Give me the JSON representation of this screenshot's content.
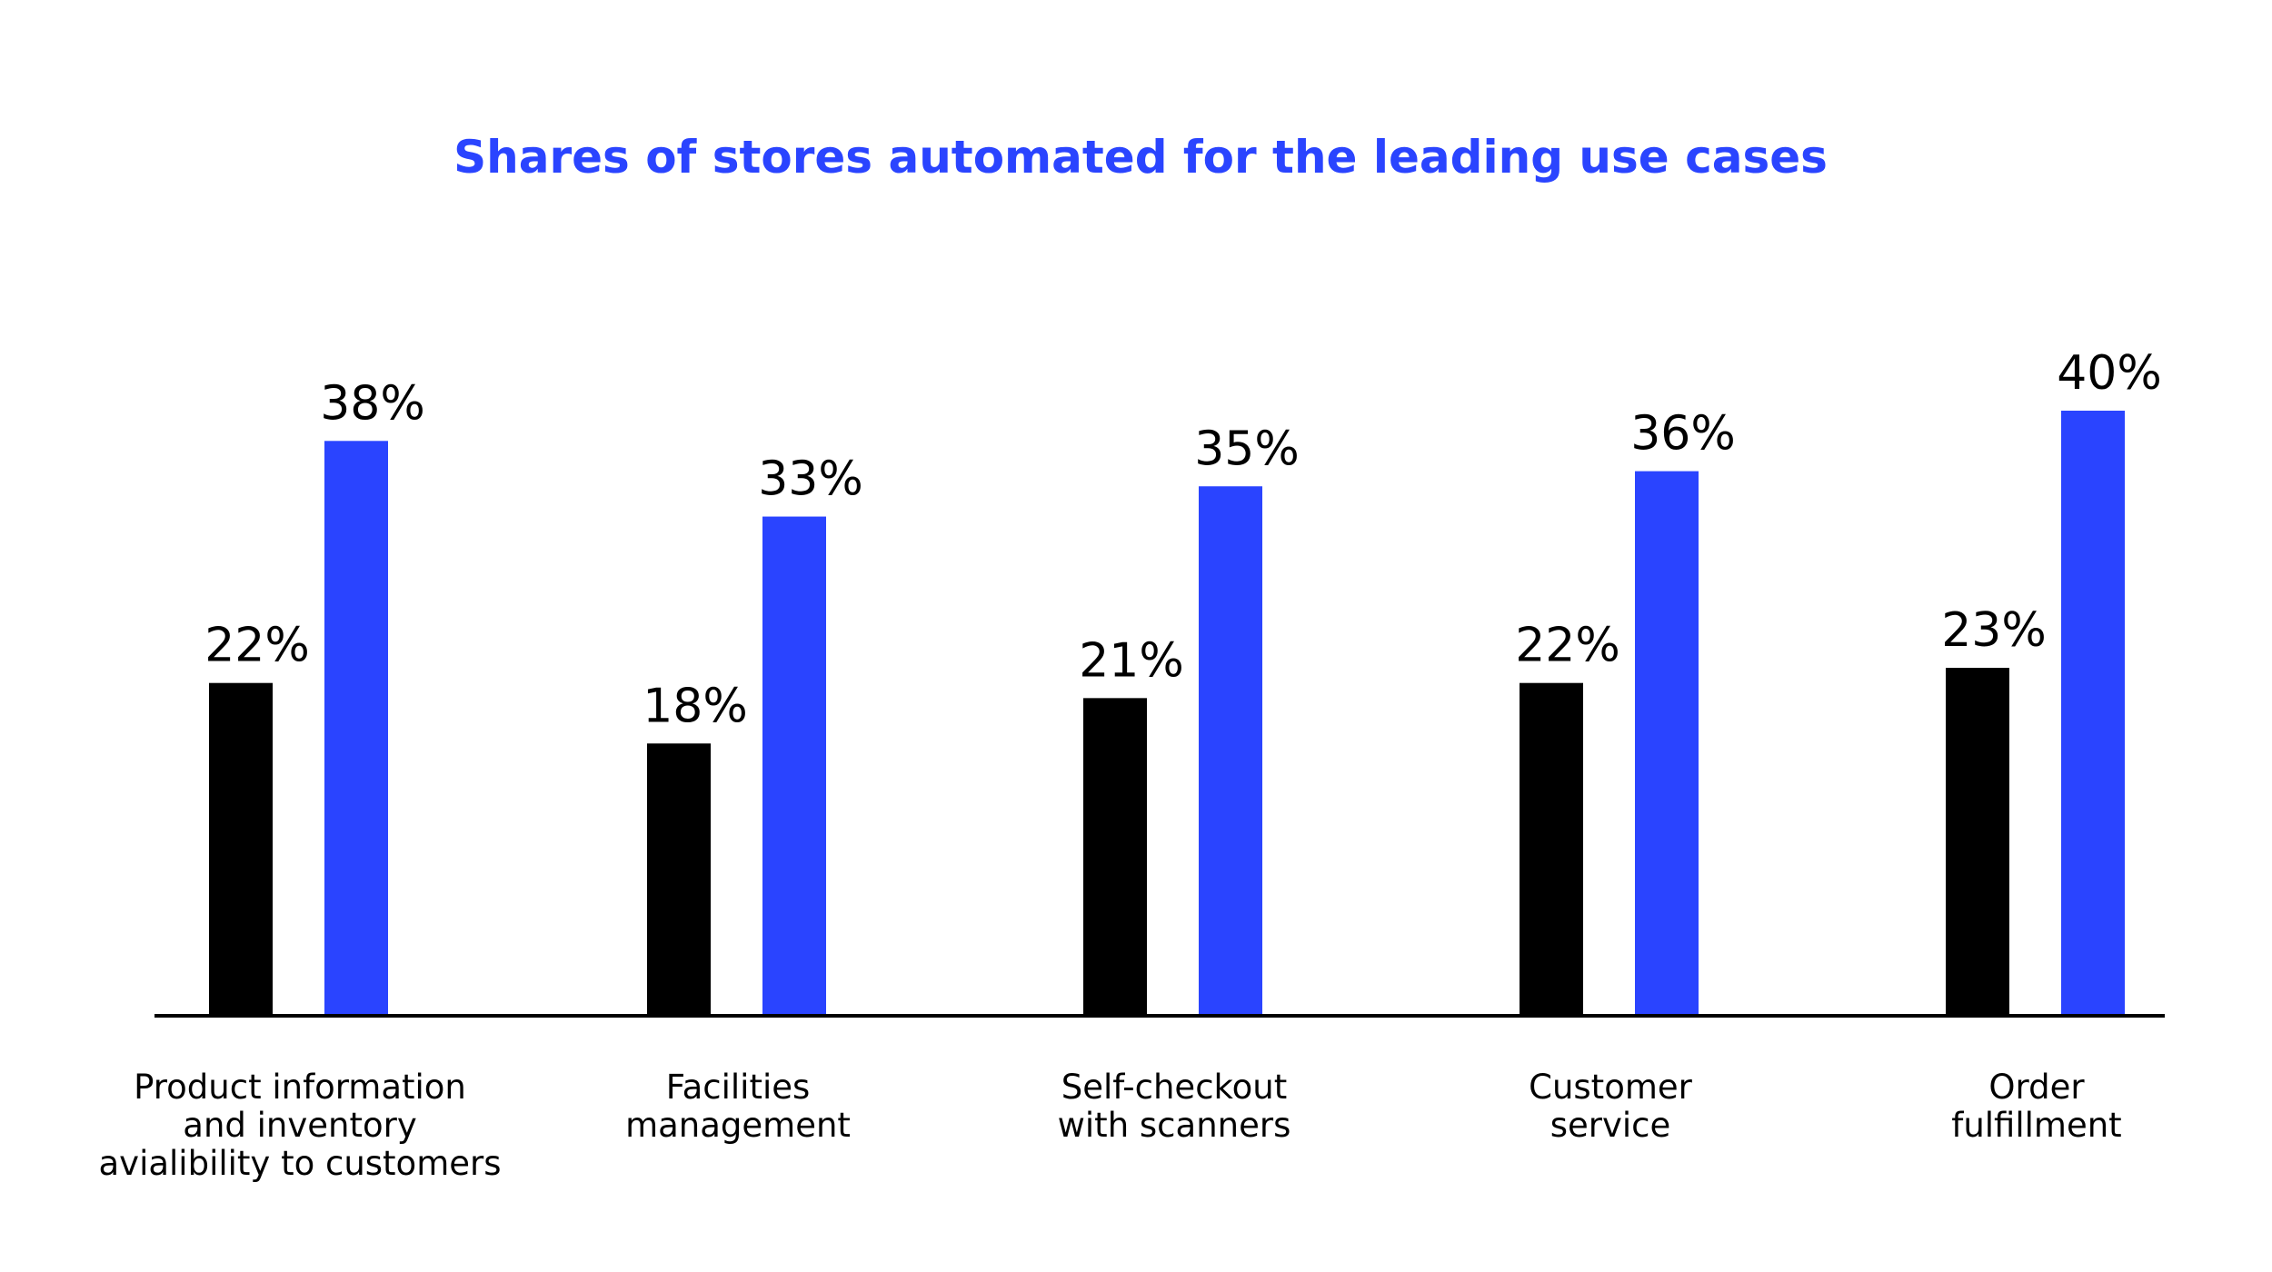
{
  "chart_data": {
    "type": "bar",
    "title": "Shares of stores automated for the leading use cases",
    "categories": [
      [
        "Product information",
        "and inventory",
        "avialibility to customers"
      ],
      [
        "Facilities",
        "management"
      ],
      [
        "Self-checkout",
        "with scanners"
      ],
      [
        "Customer",
        "service"
      ],
      [
        "Order",
        "fulfillment"
      ]
    ],
    "series": [
      {
        "values": [
          22,
          18,
          21,
          22,
          23
        ],
        "labels": [
          "22%",
          "18%",
          "21%",
          "22%",
          "23%"
        ],
        "color": "#000000"
      },
      {
        "values": [
          38,
          33,
          35,
          36,
          40
        ],
        "labels": [
          "38%",
          "33%",
          "35%",
          "36%",
          "40%"
        ],
        "color": "#2a44ff"
      }
    ],
    "ylim": [
      0,
      40
    ],
    "grid": false,
    "legend": "none",
    "colors": {
      "title": "#2a44ff",
      "axis": "#000000"
    }
  }
}
